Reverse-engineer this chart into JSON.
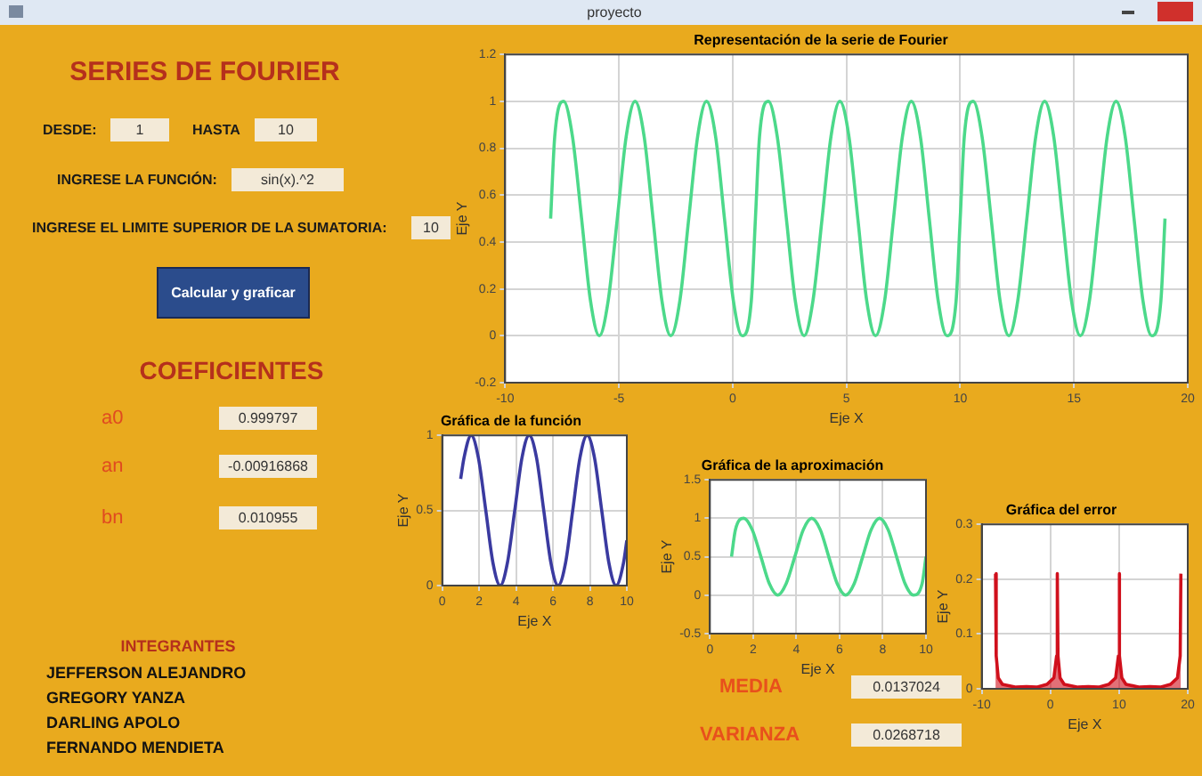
{
  "chart_data": [
    {
      "type": "other",
      "title": "SERIES DE FOURIER",
      "annotations": [
        "proyecto",
        "DESDE:",
        "1",
        "HASTA",
        "10",
        "INGRESE LA FUNCIÓN:",
        "sin(x).^2",
        "INGRESE EL LIMITE SUPERIOR DE LA SUMATORIA:",
        "10",
        "Calcular y graficar",
        "COEFICIENTES",
        "a0",
        "0.999797",
        "an",
        "-0.00916868",
        "bn",
        "0.010955",
        "INTEGRANTES",
        "JEFFERSON ALEJANDRO",
        "GREGORY YANZA",
        "DARLING APOLO",
        "FERNANDO MENDIETA",
        "MEDIA",
        "0.0137024",
        "VARIANZA",
        "0.0268718"
      ]
    },
    {
      "type": "line",
      "title": "Representación de la serie de Fourier",
      "xlabel": "Eje X",
      "ylabel": "Eje Y",
      "xlim": [
        -10,
        20
      ],
      "xticks": [
        -10,
        -5,
        0,
        5,
        10,
        15,
        20
      ],
      "ylim": [
        -0.2,
        1.2
      ],
      "yticks": [
        -0.2,
        0,
        0.2,
        0.4,
        0.6,
        0.8,
        1,
        1.2
      ],
      "grid": true,
      "series": [
        {
          "color": "#4cd98a",
          "x": [
            -8,
            -7.82,
            -7.43,
            -7.04,
            -6.64,
            -6.25,
            -5.86,
            -5.47,
            -5.07,
            -4.68,
            -4.29,
            -3.89,
            -3.5,
            -3.11,
            -2.72,
            -2.32,
            -1.93,
            -1.54,
            -1.15,
            -0.75,
            -0.36,
            0.03,
            0.42,
            0.82,
            1,
            1.18,
            1.57,
            1.96,
            2.36,
            2.75,
            3.14,
            3.53,
            3.93,
            4.32,
            4.71,
            5.11,
            5.5,
            5.89,
            6.28,
            6.68,
            7.07,
            7.46,
            7.85,
            8.25,
            8.64,
            9.03,
            9.42,
            9.82,
            10,
            10.18,
            10.57,
            10.96,
            11.36,
            11.75,
            12.14,
            12.53,
            12.93,
            13.32,
            13.71,
            14.11,
            14.5,
            14.89,
            15.28,
            15.68,
            16.07,
            16.46,
            16.85,
            17.25,
            17.64,
            18.03,
            18.42,
            18.82,
            19
          ],
          "values": [
            0.5,
            0.85,
            1,
            0.85,
            0.5,
            0.15,
            0,
            0.15,
            0.5,
            0.85,
            1,
            0.85,
            0.5,
            0.15,
            0,
            0.15,
            0.5,
            0.85,
            1,
            0.85,
            0.5,
            0.15,
            0,
            0.15,
            0.5,
            0.85,
            1,
            0.85,
            0.5,
            0.15,
            0,
            0.15,
            0.5,
            0.85,
            1,
            0.85,
            0.5,
            0.15,
            0,
            0.15,
            0.5,
            0.85,
            1,
            0.85,
            0.5,
            0.15,
            0,
            0.15,
            0.5,
            0.85,
            1,
            0.85,
            0.5,
            0.15,
            0,
            0.15,
            0.5,
            0.85,
            1,
            0.85,
            0.5,
            0.15,
            0,
            0.15,
            0.5,
            0.85,
            1,
            0.85,
            0.5,
            0.15,
            0,
            0.15,
            0.5
          ]
        }
      ]
    },
    {
      "type": "line",
      "title": "Gráfica de la función",
      "xlabel": "Eje X",
      "ylabel": "Eje Y",
      "xlim": [
        0,
        10
      ],
      "xticks": [
        0,
        2,
        4,
        6,
        8,
        10
      ],
      "ylim": [
        0,
        1
      ],
      "yticks": [
        0,
        0.5,
        1
      ],
      "grid": true,
      "series": [
        {
          "color": "#3a3aa0",
          "x": [
            1,
            1.18,
            1.57,
            1.96,
            2.36,
            2.75,
            3.14,
            3.53,
            3.93,
            4.32,
            4.71,
            5.11,
            5.5,
            5.89,
            6.28,
            6.68,
            7.07,
            7.46,
            7.85,
            8.25,
            8.64,
            9.03,
            9.42,
            9.82,
            10
          ],
          "values": [
            0.71,
            0.85,
            1,
            0.85,
            0.5,
            0.15,
            0,
            0.15,
            0.5,
            0.85,
            1,
            0.85,
            0.5,
            0.15,
            0,
            0.15,
            0.5,
            0.85,
            1,
            0.85,
            0.5,
            0.15,
            0,
            0.15,
            0.3
          ]
        }
      ]
    },
    {
      "type": "line",
      "title": "Gráfica de la aproximación",
      "xlabel": "Eje X",
      "ylabel": "Eje Y",
      "xlim": [
        0,
        10
      ],
      "xticks": [
        0,
        2,
        4,
        6,
        8,
        10
      ],
      "ylim": [
        -0.5,
        1.5
      ],
      "yticks": [
        -0.5,
        0,
        0.5,
        1,
        1.5
      ],
      "grid": true,
      "series": [
        {
          "color": "#4cd98a",
          "x": [
            1,
            1.18,
            1.57,
            1.96,
            2.36,
            2.75,
            3.14,
            3.53,
            3.93,
            4.32,
            4.71,
            5.11,
            5.5,
            5.89,
            6.28,
            6.68,
            7.07,
            7.46,
            7.85,
            8.25,
            8.64,
            9.03,
            9.42,
            9.82,
            10
          ],
          "values": [
            0.5,
            0.85,
            1,
            0.85,
            0.5,
            0.15,
            0,
            0.15,
            0.5,
            0.85,
            1,
            0.85,
            0.5,
            0.15,
            0,
            0.15,
            0.5,
            0.85,
            1,
            0.85,
            0.5,
            0.15,
            0,
            0.15,
            0.5
          ]
        }
      ]
    },
    {
      "type": "area",
      "title": "Gráfica del error",
      "xlabel": "Eje X",
      "ylabel": "Eje Y",
      "xlim": [
        -10,
        20
      ],
      "xticks": [
        -10,
        0,
        10,
        20
      ],
      "ylim": [
        0,
        0.3
      ],
      "yticks": [
        0,
        0.1,
        0.2,
        0.3
      ],
      "grid": true,
      "series": [
        {
          "color": "#d0101c",
          "x": [
            -8,
            -7.9,
            -7.6,
            -7,
            -5,
            -3.5,
            -2,
            -0.5,
            0.5,
            0.9,
            1,
            1.1,
            1.4,
            2,
            4,
            5.5,
            7,
            8.5,
            9.5,
            9.9,
            10,
            10.1,
            10.4,
            11,
            13,
            14.5,
            16,
            17.5,
            18.5,
            18.9,
            19
          ],
          "values": [
            0.21,
            0.06,
            0.02,
            0.008,
            0.003,
            0.004,
            0.003,
            0.008,
            0.02,
            0.06,
            0.21,
            0.06,
            0.02,
            0.008,
            0.003,
            0.004,
            0.003,
            0.008,
            0.02,
            0.06,
            0.21,
            0.06,
            0.02,
            0.008,
            0.003,
            0.004,
            0.003,
            0.008,
            0.02,
            0.06,
            0.21
          ]
        }
      ]
    }
  ]
}
